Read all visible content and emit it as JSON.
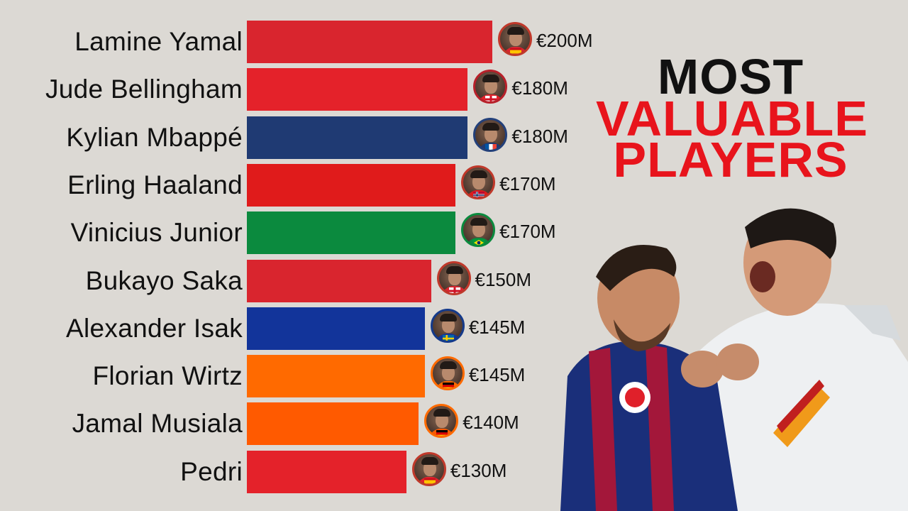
{
  "title": {
    "line1": "MOST",
    "line2": "VALUABLE",
    "line3": "PLAYERS"
  },
  "chart_data": {
    "type": "bar",
    "orientation": "horizontal",
    "categories": [
      "Lamine Yamal",
      "Jude Bellingham",
      "Kylian Mbappé",
      "Erling Haaland",
      "Vinicius Junior",
      "Bukayo Saka",
      "Alexander Isak",
      "Florian Wirtz",
      "Jamal Musiala",
      "Pedri"
    ],
    "values": [
      200,
      180,
      180,
      170,
      170,
      150,
      145,
      145,
      140,
      130
    ],
    "value_labels": [
      "€200M",
      "€180M",
      "€180M",
      "€170M",
      "€170M",
      "€150M",
      "€145M",
      "€145M",
      "€140M",
      "€130M"
    ],
    "bar_colors": [
      "#d9252e",
      "#e4222a",
      "#1f3a73",
      "#e01b1b",
      "#0b8a3e",
      "#d9252e",
      "#12349a",
      "#ff6a00",
      "#ff5a00",
      "#e4222a"
    ],
    "avatar_ring_colors": [
      "#c0392b",
      "#b8202a",
      "#23407a",
      "#c0392b",
      "#0b8a3e",
      "#c0392b",
      "#153a8a",
      "#ff6a00",
      "#ff6a00",
      "#c0392b"
    ],
    "flags": [
      "spain-flag-icon",
      "england-flag-icon",
      "france-flag-icon",
      "norway-flag-icon",
      "brazil-flag-icon",
      "england-flag-icon",
      "sweden-flag-icon",
      "germany-flag-icon",
      "germany-flag-icon",
      "spain-flag-icon"
    ],
    "xlim": [
      0,
      200
    ]
  },
  "illustration": "messi-ronaldo-shirt-grab-illustration"
}
